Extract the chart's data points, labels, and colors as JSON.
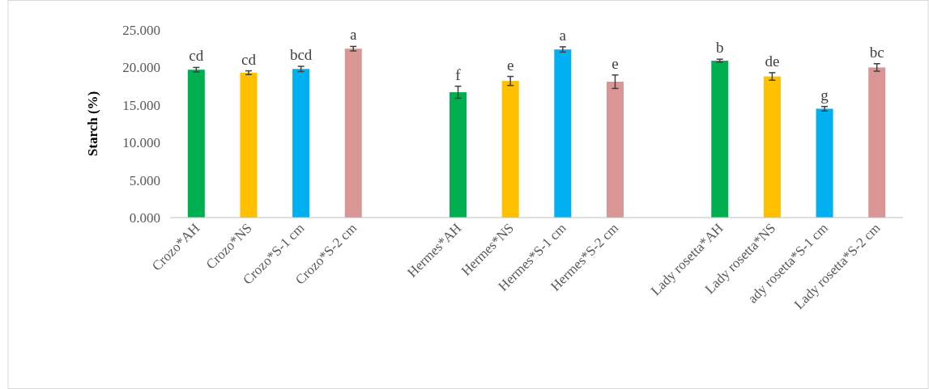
{
  "chart_data": {
    "type": "bar",
    "ylabel": "Starch (%)",
    "categories": [
      "Crozo*AH",
      "Crozo*NS",
      "Crozo*S-1 cm",
      "Crozo*S-2 cm",
      null,
      "Hermes*AH",
      "Hermes*NS",
      "Hermes*S-1 cm",
      "Hermes*S-2 cm",
      null,
      "Lady rosetta*AH",
      "Lady rosetta*NS",
      "ady rosetta*S-1 cm",
      "Lady rosetta*S-2 cm"
    ],
    "values": [
      19.7,
      19.3,
      19.8,
      22.5,
      null,
      16.7,
      18.2,
      22.4,
      18.1,
      null,
      20.9,
      18.8,
      14.5,
      20.0
    ],
    "errors": [
      0.3,
      0.25,
      0.35,
      0.3,
      null,
      0.8,
      0.6,
      0.35,
      0.9,
      null,
      0.2,
      0.5,
      0.3,
      0.5
    ],
    "colors": [
      "#00b050",
      "#ffc000",
      "#00b0f0",
      "#da9694",
      null,
      "#00b050",
      "#ffc000",
      "#00b0f0",
      "#da9694",
      null,
      "#00b050",
      "#ffc000",
      "#00b0f0",
      "#da9694"
    ],
    "ylim": [
      0,
      25
    ],
    "yticks": [
      {
        "value": 0,
        "label": "0.000"
      },
      {
        "value": 5,
        "label": "5.000"
      },
      {
        "value": 10,
        "label": "10.000"
      },
      {
        "value": 15,
        "label": "15.000"
      },
      {
        "value": 20,
        "label": "20.000"
      },
      {
        "value": 25,
        "label": "25.000"
      }
    ],
    "grid": false,
    "annotations": [
      {
        "text": "cd",
        "x": "Crozo*AH",
        "y": 20.0
      },
      {
        "text": "cd",
        "x": "Crozo*NS",
        "y": 19.55
      },
      {
        "text": "bcd",
        "x": "Crozo*S-1 cm",
        "y": 20.15
      },
      {
        "text": "a",
        "x": "Crozo*S-2 cm",
        "y": 22.8
      },
      {
        "text": "f",
        "x": "Hermes*AH",
        "y": 17.5
      },
      {
        "text": "e",
        "x": "Hermes*NS",
        "y": 18.8
      },
      {
        "text": "a",
        "x": "Hermes*S-1 cm",
        "y": 22.75
      },
      {
        "text": "e",
        "x": "Hermes*S-2 cm",
        "y": 19.0
      },
      {
        "text": "b",
        "x": "Lady rosetta*AH",
        "y": 21.1
      },
      {
        "text": "de",
        "x": "Lady rosetta*NS",
        "y": 19.3
      },
      {
        "text": "g",
        "x": "ady rosetta*S-1 cm",
        "y": 14.8
      },
      {
        "text": "bc",
        "x": "Lady rosetta*S-2 cm",
        "y": 20.5
      }
    ]
  }
}
